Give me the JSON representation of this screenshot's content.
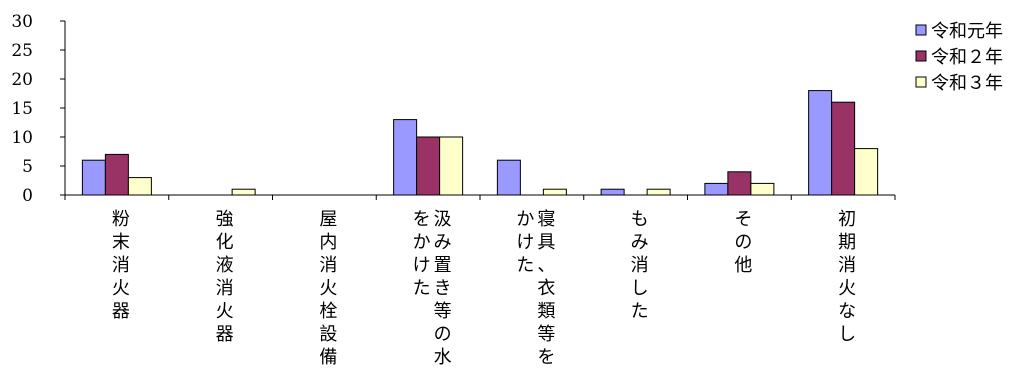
{
  "chart_data": {
    "type": "bar",
    "title": "",
    "xlabel": "",
    "ylabel": "",
    "ylim": [
      0,
      30
    ],
    "yticks": [
      0,
      5,
      10,
      15,
      20,
      25,
      30
    ],
    "grid": false,
    "legend_position": "top-right",
    "categories": [
      [
        "粉末消火器"
      ],
      [
        "強化液消火器"
      ],
      [
        "屋内消火栓設備"
      ],
      [
        "汲み置き等の水",
        "をかけた"
      ],
      [
        "寝具、衣類等を",
        "かけた"
      ],
      [
        "もみ消した"
      ],
      [
        "その他"
      ],
      [
        "初期消火なし"
      ]
    ],
    "series": [
      {
        "name": "令和元年",
        "color": "#9999ff",
        "values": [
          6,
          0,
          0,
          13,
          6,
          1,
          2,
          18
        ]
      },
      {
        "name": "令和２年",
        "color": "#993366",
        "values": [
          7,
          0,
          0,
          10,
          0,
          0,
          4,
          16
        ]
      },
      {
        "name": "令和３年",
        "color": "#ffffcc",
        "values": [
          3,
          1,
          0,
          10,
          1,
          1,
          2,
          8
        ]
      }
    ]
  }
}
